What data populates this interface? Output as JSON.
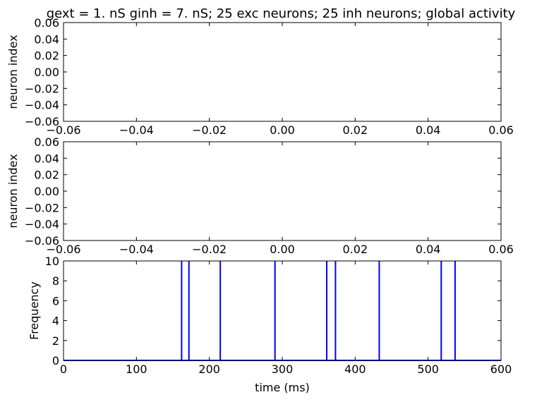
{
  "title": "gext = 1. nS ginh = 7. nS; 25 exc neurons; 25 inh neurons; global activity",
  "chart_data": [
    {
      "type": "scatter",
      "ylabel": "neuron index",
      "xlim": [
        -0.06,
        0.06
      ],
      "ylim": [
        -0.06,
        0.06
      ],
      "xticks": [
        "−0.06",
        "−0.04",
        "−0.02",
        "0.00",
        "0.02",
        "0.04",
        "0.06"
      ],
      "yticks": [
        "0.06",
        "0.04",
        "0.02",
        "0.00",
        "−0.02",
        "−0.04",
        "−0.06"
      ],
      "points": []
    },
    {
      "type": "scatter",
      "ylabel": "neuron index",
      "xlim": [
        -0.06,
        0.06
      ],
      "ylim": [
        -0.06,
        0.06
      ],
      "xticks": [
        "−0.06",
        "−0.04",
        "−0.02",
        "0.00",
        "0.02",
        "0.04",
        "0.06"
      ],
      "yticks": [
        "0.06",
        "0.04",
        "0.02",
        "0.00",
        "−0.02",
        "−0.04",
        "−0.06"
      ],
      "points": []
    },
    {
      "type": "line",
      "xlabel": "time (ms)",
      "ylabel": "Frequency",
      "xlim": [
        0,
        600
      ],
      "ylim": [
        0,
        10
      ],
      "xticks": [
        "0",
        "100",
        "200",
        "300",
        "400",
        "500",
        "600"
      ],
      "yticks": [
        "10",
        "8",
        "6",
        "4",
        "2",
        "0"
      ],
      "color": "#0000ff",
      "baseline": 0,
      "spikes": [
        {
          "t": 162,
          "value": 10
        },
        {
          "t": 172,
          "value": 10
        },
        {
          "t": 215,
          "value": 10
        },
        {
          "t": 290,
          "value": 10
        },
        {
          "t": 361,
          "value": 10
        },
        {
          "t": 373,
          "value": 10
        },
        {
          "t": 433,
          "value": 10
        },
        {
          "t": 518,
          "value": 10
        },
        {
          "t": 537,
          "value": 10
        }
      ]
    }
  ]
}
